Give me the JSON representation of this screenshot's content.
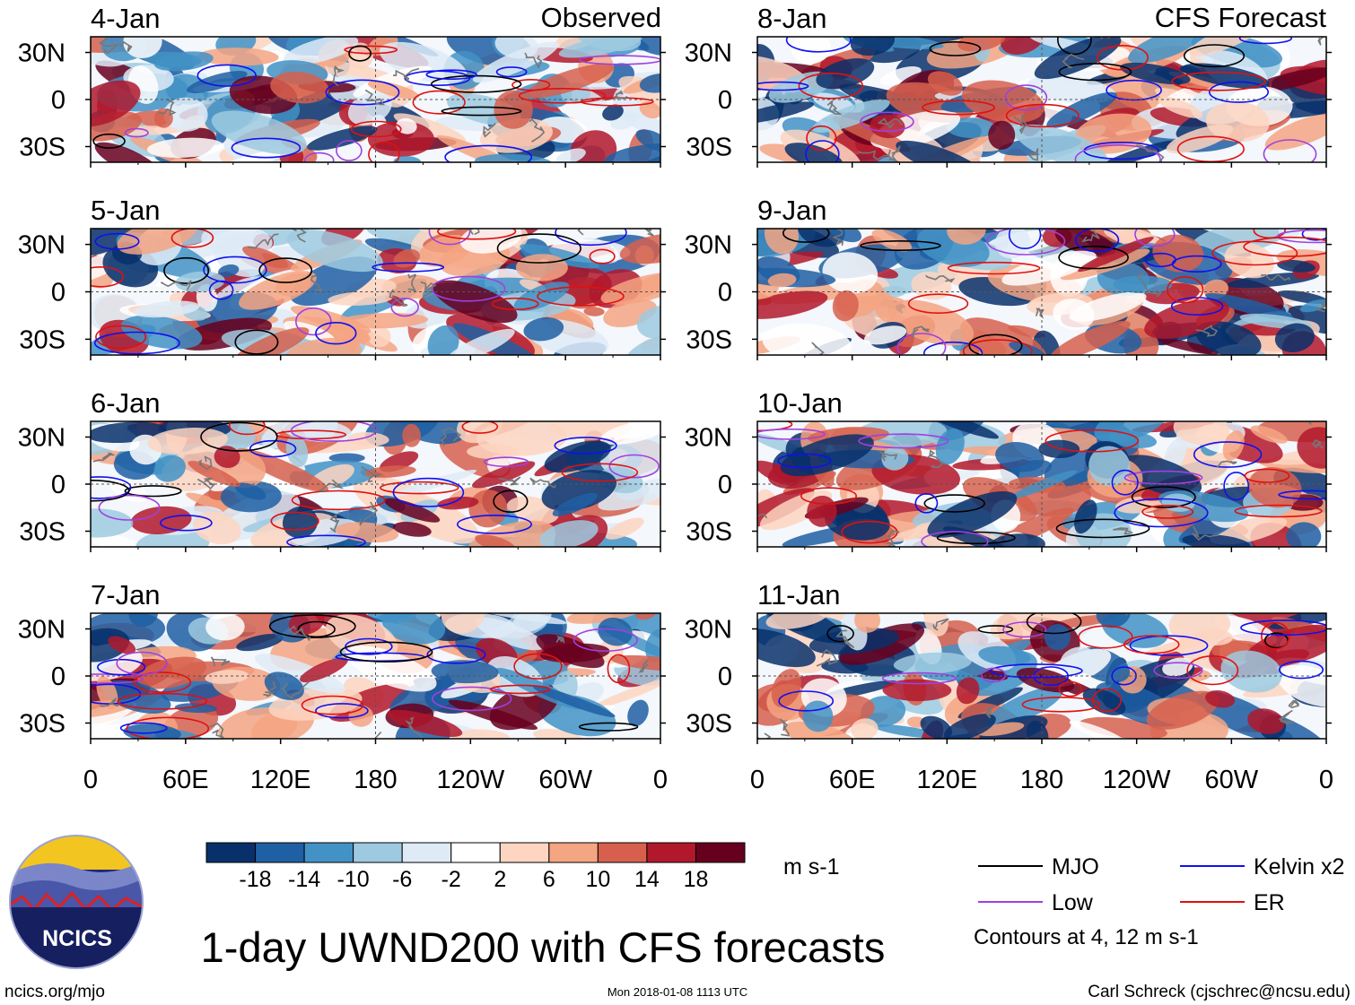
{
  "figure": {
    "title": "1-day UWND200 with CFS forecasts",
    "left_header": "Observed",
    "right_header": "CFS Forecast",
    "website": "ncics.org/mjo",
    "timestamp": "Mon 2018-01-08 1113 UTC",
    "author": "Carl Schreck (cjschrec@ncsu.edu)",
    "logo_text": "NCICS"
  },
  "chart_data": {
    "type": "heatmap",
    "variable": "200-hPa zonal wind anomaly (UWND200)",
    "units": "m s-1",
    "xlim": [
      0,
      360
    ],
    "ylim": [
      -40,
      40
    ],
    "x_ticks": [
      "0",
      "60E",
      "120E",
      "180",
      "120W",
      "60W",
      "0"
    ],
    "y_ticks": [
      "30N",
      "0",
      "30S"
    ],
    "colorbar": {
      "levels": [
        "-18",
        "-14",
        "-10",
        "-6",
        "-2",
        "2",
        "6",
        "10",
        "14",
        "18"
      ],
      "colors": [
        "#08306b",
        "#1f5fa3",
        "#4292c6",
        "#9ecae1",
        "#deebf7",
        "#ffffff",
        "#fdd5c1",
        "#f4a582",
        "#d6604d",
        "#b2182b",
        "#67001f"
      ],
      "units": "m s-1"
    },
    "panels": [
      {
        "label": "4-Jan",
        "source": "Observed"
      },
      {
        "label": "5-Jan",
        "source": "Observed"
      },
      {
        "label": "6-Jan",
        "source": "Observed"
      },
      {
        "label": "7-Jan",
        "source": "Observed"
      },
      {
        "label": "8-Jan",
        "source": "CFS Forecast"
      },
      {
        "label": "9-Jan",
        "source": "CFS Forecast"
      },
      {
        "label": "10-Jan",
        "source": "CFS Forecast"
      },
      {
        "label": "11-Jan",
        "source": "CFS Forecast"
      }
    ],
    "legend": {
      "items": [
        {
          "label": "MJO",
          "color": "#000000"
        },
        {
          "label": "Kelvin x2",
          "color": "#1010ee"
        },
        {
          "label": "Low",
          "color": "#a040e0"
        },
        {
          "label": "ER",
          "color": "#e01010"
        }
      ],
      "note": "Contours at 4, 12 m s-1"
    }
  }
}
